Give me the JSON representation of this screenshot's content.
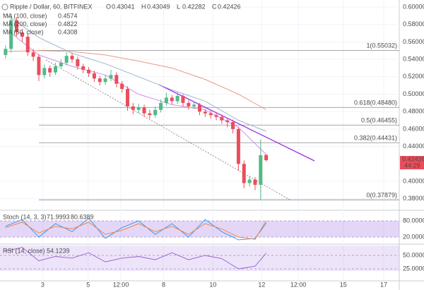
{
  "chart_data": {
    "type": "candlestick",
    "title": "Ripple / Dollar, 60, BITFINEX",
    "ohlc_labels": [
      "O",
      "H",
      "L",
      "C"
    ],
    "countdown": "44:29",
    "grid": true,
    "up_color": "#53b987",
    "down_color": "#eb4d5c",
    "xlim": [
      -1,
      71
    ],
    "xticks": [
      {
        "value": 6.7,
        "label": "3"
      },
      {
        "value": 14.9,
        "label": "5"
      },
      {
        "value": 20.8,
        "label": "12:00"
      },
      {
        "value": 28.5,
        "label": "8"
      },
      {
        "value": 37.4,
        "label": "10"
      },
      {
        "value": 46.2,
        "label": "12"
      },
      {
        "value": 52.8,
        "label": "12:00"
      },
      {
        "value": 60.9,
        "label": "15"
      },
      {
        "value": 68.2,
        "label": "17"
      }
    ],
    "ylim": [
      0.3676,
      0.6081
    ],
    "yticks": [
      {
        "value": 0.6,
        "label": "0.60000"
      },
      {
        "value": 0.58,
        "label": "0.58000"
      },
      {
        "value": 0.56,
        "label": "0.56000"
      },
      {
        "value": 0.54,
        "label": "0.54000"
      },
      {
        "value": 0.52,
        "label": "0.52000"
      },
      {
        "value": 0.5,
        "label": "0.50000"
      },
      {
        "value": 0.48,
        "label": "0.48000"
      },
      {
        "value": 0.46,
        "label": "0.46000"
      },
      {
        "value": 0.44,
        "label": "0.44000"
      },
      {
        "value": 0.4,
        "label": "0.40000"
      },
      {
        "value": 0.38,
        "label": "0.38000"
      }
    ],
    "candles": {
      "open": [
        0.545,
        0.552,
        0.585,
        0.571,
        0.566,
        0.548,
        0.543,
        0.522,
        0.53,
        0.525,
        0.532,
        0.536,
        0.544,
        0.54,
        0.532,
        0.528,
        0.524,
        0.518,
        0.514,
        0.518,
        0.522,
        0.512,
        0.506,
        0.486,
        0.482,
        0.485,
        0.478,
        0.476,
        0.482,
        0.49,
        0.496,
        0.492,
        0.498,
        0.49,
        0.486,
        0.488,
        0.48,
        0.478,
        0.476,
        0.474,
        0.47,
        0.468,
        0.46,
        0.42,
        0.398,
        0.402,
        0.396,
        0.43041
      ],
      "high": [
        0.556,
        0.592,
        0.588,
        0.575,
        0.569,
        0.552,
        0.546,
        0.534,
        0.533,
        0.536,
        0.54,
        0.548,
        0.547,
        0.543,
        0.535,
        0.531,
        0.527,
        0.521,
        0.522,
        0.528,
        0.525,
        0.515,
        0.509,
        0.49,
        0.489,
        0.488,
        0.482,
        0.486,
        0.494,
        0.502,
        0.499,
        0.502,
        0.5,
        0.493,
        0.491,
        0.49,
        0.483,
        0.481,
        0.479,
        0.477,
        0.473,
        0.471,
        0.462,
        0.424,
        0.406,
        0.405,
        0.448,
        0.43049
      ],
      "low": [
        0.541,
        0.548,
        0.566,
        0.56,
        0.544,
        0.538,
        0.515,
        0.518,
        0.52,
        0.522,
        0.529,
        0.533,
        0.536,
        0.528,
        0.524,
        0.52,
        0.514,
        0.51,
        0.511,
        0.515,
        0.508,
        0.502,
        0.481,
        0.477,
        0.478,
        0.474,
        0.472,
        0.473,
        0.479,
        0.487,
        0.488,
        0.489,
        0.486,
        0.482,
        0.483,
        0.476,
        0.474,
        0.472,
        0.47,
        0.466,
        0.462,
        0.455,
        0.412,
        0.392,
        0.394,
        0.39,
        0.379,
        0.42282
      ],
      "close": [
        0.552,
        0.585,
        0.571,
        0.566,
        0.548,
        0.543,
        0.522,
        0.53,
        0.525,
        0.532,
        0.536,
        0.544,
        0.54,
        0.532,
        0.528,
        0.524,
        0.518,
        0.514,
        0.518,
        0.522,
        0.512,
        0.506,
        0.486,
        0.482,
        0.485,
        0.478,
        0.476,
        0.482,
        0.49,
        0.496,
        0.492,
        0.498,
        0.49,
        0.486,
        0.488,
        0.48,
        0.478,
        0.476,
        0.474,
        0.47,
        0.468,
        0.46,
        0.42,
        0.398,
        0.402,
        0.396,
        0.43,
        0.42426
      ]
    },
    "moving_averages": [
      {
        "name": "MA (100, close)",
        "color": "#9fb6c9",
        "x": [
          0,
          6,
          12,
          18,
          24,
          30,
          36,
          42,
          47
        ],
        "values": [
          0.592,
          0.565,
          0.547,
          0.535,
          0.52,
          0.505,
          0.492,
          0.47,
          0.4574
        ]
      },
      {
        "name": "MA (200, close)",
        "color": "#e89a86",
        "x": [
          0,
          6,
          12,
          18,
          24,
          30,
          36,
          42,
          47
        ],
        "values": [
          0.549,
          0.55,
          0.549,
          0.545,
          0.538,
          0.53,
          0.517,
          0.5,
          0.4822
        ]
      },
      {
        "name": "MA (50, close)",
        "color": "#d68cf0",
        "x": [
          0,
          6,
          12,
          18,
          24,
          30,
          36,
          42,
          47
        ],
        "values": [
          0.575,
          0.545,
          0.532,
          0.522,
          0.5,
          0.488,
          0.482,
          0.462,
          0.4308
        ]
      }
    ],
    "fib_levels": [
      {
        "value": 0.55032,
        "label": "1(0.55032)"
      },
      {
        "value": 0.4848,
        "label": "0.618(0.48480)"
      },
      {
        "value": 0.46455,
        "label": "0.5(0.46455)"
      },
      {
        "value": 0.44431,
        "label": "0.382(0.44431)"
      },
      {
        "value": 0.37879,
        "label": "0(0.37879)"
      }
    ],
    "stochastic": {
      "type": "line",
      "name": "Stoch (14, 3, 3)",
      "ylim": [
        -3.4,
        114
      ],
      "yticks": [
        {
          "value": 80,
          "label": "80.0000"
        },
        {
          "value": 20,
          "label": "20.0000"
        }
      ],
      "x": [
        0,
        3,
        6,
        9,
        12,
        15,
        18,
        21,
        24,
        27,
        30,
        33,
        36,
        39,
        42,
        45,
        47
      ],
      "series": [
        {
          "color": "#2196f3",
          "values": [
            60,
            85,
            20,
            70,
            40,
            90,
            15,
            55,
            80,
            30,
            70,
            20,
            85,
            40,
            10,
            15,
            71.9993
          ]
        },
        {
          "color": "#ff7a2f",
          "values": [
            55,
            75,
            35,
            60,
            50,
            75,
            30,
            45,
            70,
            40,
            60,
            30,
            70,
            50,
            20,
            12,
            80.6389
          ]
        }
      ]
    },
    "rsi": {
      "type": "line",
      "name": "RSI (14, close)",
      "ylim": [
        2.6,
        68.4
      ],
      "yticks": [
        {
          "value": 50,
          "label": "50.0000"
        },
        {
          "value": 25,
          "label": "25.0000"
        }
      ],
      "x": [
        0,
        3,
        6,
        9,
        12,
        15,
        18,
        21,
        24,
        27,
        30,
        33,
        36,
        39,
        42,
        45,
        47
      ],
      "series": [
        {
          "color": "#9c5bd4",
          "values": [
            58,
            65,
            40,
            48,
            45,
            55,
            38,
            45,
            48,
            42,
            55,
            42,
            50,
            44,
            25,
            30,
            54.1239
          ]
        }
      ]
    }
  }
}
